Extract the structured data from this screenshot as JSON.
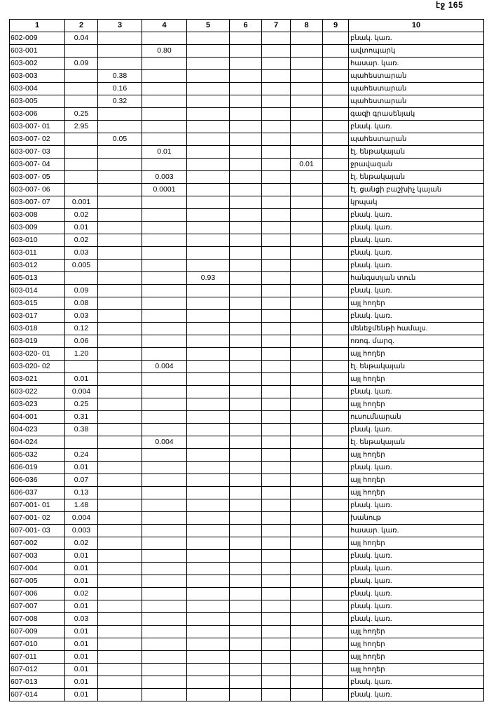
{
  "page_label": "էջ 165",
  "headers": [
    "1",
    "2",
    "3",
    "4",
    "5",
    "6",
    "7",
    "8",
    "9",
    "10"
  ],
  "rows": [
    [
      "602-009",
      "0.04",
      "",
      "",
      "",
      "",
      "",
      "",
      "",
      "բնակ. կառ."
    ],
    [
      "603-001",
      "",
      "",
      "0.80",
      "",
      "",
      "",
      "",
      "",
      "ավտոպարկ"
    ],
    [
      "603-002",
      "0.09",
      "",
      "",
      "",
      "",
      "",
      "",
      "",
      "հասար. կառ."
    ],
    [
      "603-003",
      "",
      "0.38",
      "",
      "",
      "",
      "",
      "",
      "",
      "պահեստարան"
    ],
    [
      "603-004",
      "",
      "0.16",
      "",
      "",
      "",
      "",
      "",
      "",
      "պահեստարան"
    ],
    [
      "603-005",
      "",
      "0.32",
      "",
      "",
      "",
      "",
      "",
      "",
      "պահեստարան"
    ],
    [
      "603-006",
      "0.25",
      "",
      "",
      "",
      "",
      "",
      "",
      "",
      "գազի գրասենյակ"
    ],
    [
      "603-007- 01",
      "2.95",
      "",
      "",
      "",
      "",
      "",
      "",
      "",
      "բնակ. կառ."
    ],
    [
      "603-007- 02",
      "",
      "0.05",
      "",
      "",
      "",
      "",
      "",
      "",
      "պահեստարան"
    ],
    [
      "603-007- 03",
      "",
      "",
      "0.01",
      "",
      "",
      "",
      "",
      "",
      "էլ. ենթակայան"
    ],
    [
      "603-007- 04",
      "",
      "",
      "",
      "",
      "",
      "",
      "0.01",
      "",
      "ջրավազան"
    ],
    [
      "603-007- 05",
      "",
      "",
      "0.003",
      "",
      "",
      "",
      "",
      "",
      "էլ. ենթակայան"
    ],
    [
      "603-007- 06",
      "",
      "",
      "0.0001",
      "",
      "",
      "",
      "",
      "",
      "էլ. ցանցի բաշխիչ կայան"
    ],
    [
      "603-007- 07",
      "0.001",
      "",
      "",
      "",
      "",
      "",
      "",
      "",
      "կրպակ"
    ],
    [
      "603-008",
      "0.02",
      "",
      "",
      "",
      "",
      "",
      "",
      "",
      "բնակ. կառ."
    ],
    [
      "603-009",
      "0.01",
      "",
      "",
      "",
      "",
      "",
      "",
      "",
      "բնակ. կառ."
    ],
    [
      "603-010",
      "0.02",
      "",
      "",
      "",
      "",
      "",
      "",
      "",
      "բնակ. կառ."
    ],
    [
      "603-011",
      "0.03",
      "",
      "",
      "",
      "",
      "",
      "",
      "",
      "բնակ. կառ."
    ],
    [
      "603-012",
      "0.005",
      "",
      "",
      "",
      "",
      "",
      "",
      "",
      "բնակ. կառ."
    ],
    [
      "605-013",
      "",
      "",
      "",
      "0.93",
      "",
      "",
      "",
      "",
      "հանգստյան տուն"
    ],
    [
      "603-014",
      "0.09",
      "",
      "",
      "",
      "",
      "",
      "",
      "",
      "բնակ. կառ."
    ],
    [
      "603-015",
      "0.08",
      "",
      "",
      "",
      "",
      "",
      "",
      "",
      "այլ հողեր"
    ],
    [
      "603-017",
      "0.03",
      "",
      "",
      "",
      "",
      "",
      "",
      "",
      "բնակ. կառ."
    ],
    [
      "603-018",
      "0.12",
      "",
      "",
      "",
      "",
      "",
      "",
      "",
      "մենեջմենթի համալս."
    ],
    [
      "603-019",
      "0.06",
      "",
      "",
      "",
      "",
      "",
      "",
      "",
      "ոռոգ. մարզ."
    ],
    [
      "603-020- 01",
      "1.20",
      "",
      "",
      "",
      "",
      "",
      "",
      "",
      "այլ հողեր"
    ],
    [
      "603-020- 02",
      "",
      "",
      "0.004",
      "",
      "",
      "",
      "",
      "",
      "էլ. ենթակայան"
    ],
    [
      "603-021",
      "0.01",
      "",
      "",
      "",
      "",
      "",
      "",
      "",
      "այլ հողեր"
    ],
    [
      "603-022",
      "0.004",
      "",
      "",
      "",
      "",
      "",
      "",
      "",
      "բնակ. կառ."
    ],
    [
      "603-023",
      "0.25",
      "",
      "",
      "",
      "",
      "",
      "",
      "",
      "այլ հողեր"
    ],
    [
      "604-001",
      "0.31",
      "",
      "",
      "",
      "",
      "",
      "",
      "",
      "ուսումնարան"
    ],
    [
      "604-023",
      "0.38",
      "",
      "",
      "",
      "",
      "",
      "",
      "",
      "բնակ. կառ."
    ],
    [
      "604-024",
      "",
      "",
      "0.004",
      "",
      "",
      "",
      "",
      "",
      "էլ. ենթակայան"
    ],
    [
      "605-032",
      "0.24",
      "",
      "",
      "",
      "",
      "",
      "",
      "",
      "այլ հողեր"
    ],
    [
      "606-019",
      "0.01",
      "",
      "",
      "",
      "",
      "",
      "",
      "",
      "բնակ. կառ."
    ],
    [
      "606-036",
      "0.07",
      "",
      "",
      "",
      "",
      "",
      "",
      "",
      "այլ հողեր"
    ],
    [
      "606-037",
      "0.13",
      "",
      "",
      "",
      "",
      "",
      "",
      "",
      "այլ հողեր"
    ],
    [
      "607-001- 01",
      "1.48",
      "",
      "",
      "",
      "",
      "",
      "",
      "",
      "բնակ. կառ."
    ],
    [
      "607-001- 02",
      "0.004",
      "",
      "",
      "",
      "",
      "",
      "",
      "",
      "խանութ"
    ],
    [
      "607-001- 03",
      "0.003",
      "",
      "",
      "",
      "",
      "",
      "",
      "",
      "հասար. կառ."
    ],
    [
      "607-002",
      "0.02",
      "",
      "",
      "",
      "",
      "",
      "",
      "",
      "այլ հողեր"
    ],
    [
      "607-003",
      "0.01",
      "",
      "",
      "",
      "",
      "",
      "",
      "",
      "բնակ. կառ."
    ],
    [
      "607-004",
      "0.01",
      "",
      "",
      "",
      "",
      "",
      "",
      "",
      "բնակ. կառ."
    ],
    [
      "607-005",
      "0.01",
      "",
      "",
      "",
      "",
      "",
      "",
      "",
      "բնակ. կառ."
    ],
    [
      "607-006",
      "0.02",
      "",
      "",
      "",
      "",
      "",
      "",
      "",
      "բնակ. կառ."
    ],
    [
      "607-007",
      "0.01",
      "",
      "",
      "",
      "",
      "",
      "",
      "",
      "բնակ. կառ."
    ],
    [
      "607-008",
      "0.03",
      "",
      "",
      "",
      "",
      "",
      "",
      "",
      "բնակ. կառ."
    ],
    [
      "607-009",
      "0.01",
      "",
      "",
      "",
      "",
      "",
      "",
      "",
      "այլ հողեր"
    ],
    [
      "607-010",
      "0.01",
      "",
      "",
      "",
      "",
      "",
      "",
      "",
      "այլ հողեր"
    ],
    [
      "607-011",
      "0.01",
      "",
      "",
      "",
      "",
      "",
      "",
      "",
      "այլ հողեր"
    ],
    [
      "607-012",
      "0.01",
      "",
      "",
      "",
      "",
      "",
      "",
      "",
      "այլ հողեր"
    ],
    [
      "607-013",
      "0.01",
      "",
      "",
      "",
      "",
      "",
      "",
      "",
      "բնակ. կառ."
    ],
    [
      "607-014",
      "0.01",
      "",
      "",
      "",
      "",
      "",
      "",
      "",
      "բնակ. կառ."
    ]
  ]
}
